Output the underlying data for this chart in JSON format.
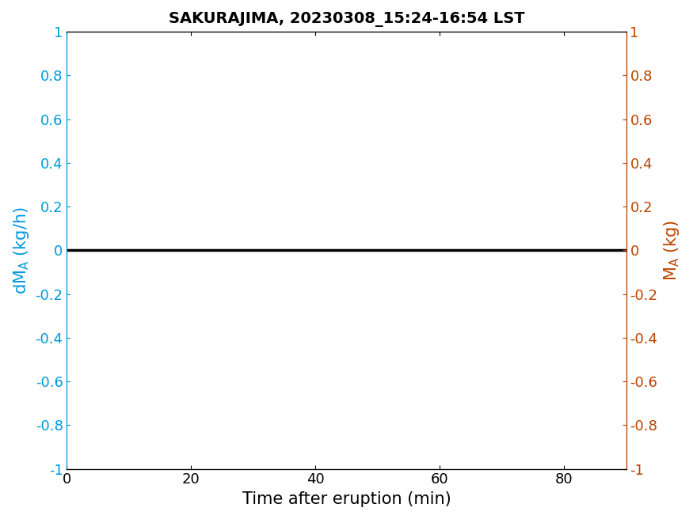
{
  "title": "SAKURAJIMA, 20230308_15:24-16:54 LST",
  "xlabel": "Time after eruption (min)",
  "xlim": [
    0,
    90
  ],
  "ylim": [
    -1,
    1
  ],
  "xticks": [
    0,
    20,
    40,
    60,
    80
  ],
  "yticks": [
    -1,
    -0.8,
    -0.6,
    -0.4,
    -0.2,
    0,
    0.2,
    0.4,
    0.6,
    0.8,
    1
  ],
  "line_x": [
    0,
    90
  ],
  "line_y": [
    0,
    0
  ],
  "line_color": "black",
  "line_width": 2.5,
  "left_axis_color": "#0099DD",
  "right_axis_color": "#BB4400",
  "title_fontsize": 14,
  "label_fontsize": 15,
  "tick_fontsize": 13,
  "background_color": "#FFFFFF"
}
